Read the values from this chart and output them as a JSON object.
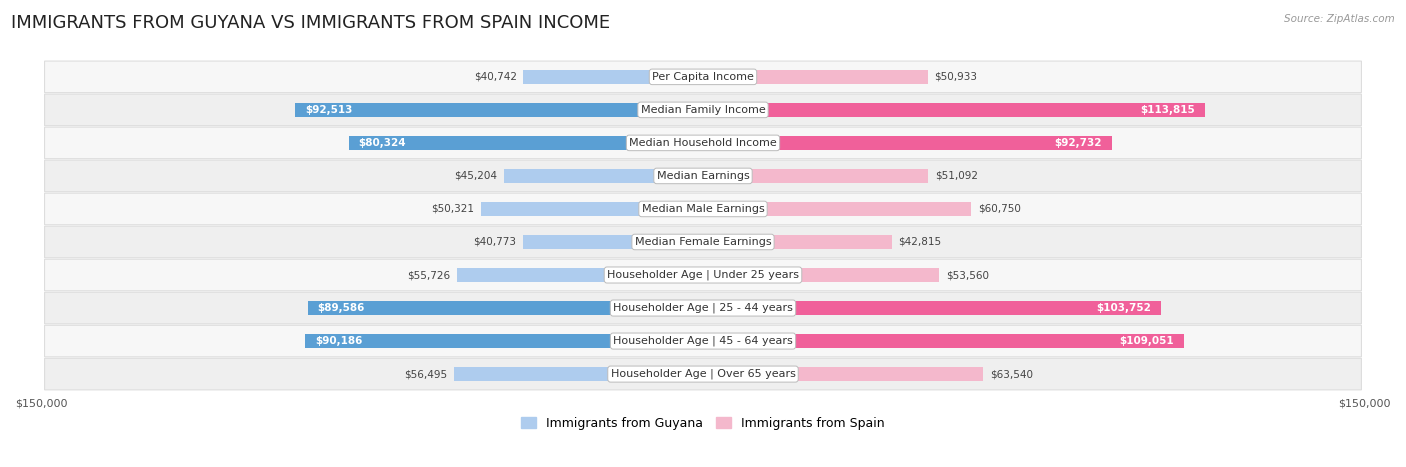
{
  "title": "IMMIGRANTS FROM GUYANA VS IMMIGRANTS FROM SPAIN INCOME",
  "source": "Source: ZipAtlas.com",
  "categories": [
    "Per Capita Income",
    "Median Family Income",
    "Median Household Income",
    "Median Earnings",
    "Median Male Earnings",
    "Median Female Earnings",
    "Householder Age | Under 25 years",
    "Householder Age | 25 - 44 years",
    "Householder Age | 45 - 64 years",
    "Householder Age | Over 65 years"
  ],
  "guyana_values": [
    40742,
    92513,
    80324,
    45204,
    50321,
    40773,
    55726,
    89586,
    90186,
    56495
  ],
  "spain_values": [
    50933,
    113815,
    92732,
    51092,
    60750,
    42815,
    53560,
    103752,
    109051,
    63540
  ],
  "guyana_color_light": "#aeccee",
  "guyana_color_dark": "#5a9fd4",
  "spain_color_light": "#f4b8cc",
  "spain_color_dark": "#f0609a",
  "guyana_threshold": 75000,
  "spain_threshold": 75000,
  "max_value": 150000,
  "bar_height": 0.42,
  "row_colors": [
    "#f7f7f7",
    "#efefef"
  ],
  "row_border_color": "#dddddd",
  "label_bg_color": "#ffffff",
  "label_border_color": "#cccccc",
  "title_fontsize": 13,
  "label_fontsize": 8,
  "value_fontsize": 7.5,
  "legend_fontsize": 9,
  "axis_label_fontsize": 8,
  "figure_bg": "#ffffff"
}
